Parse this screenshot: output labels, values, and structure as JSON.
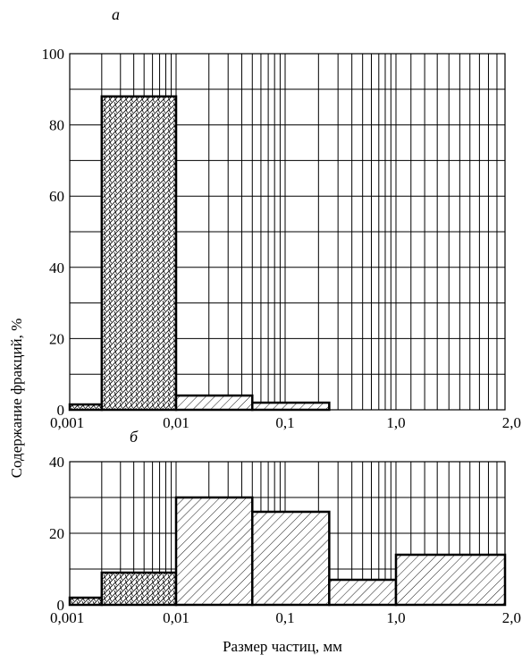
{
  "chart_data": [
    {
      "panel_label": "а",
      "type": "bar",
      "x_scale": "log",
      "x_ticks": [
        "0,001",
        "0,01",
        "0,1",
        "1,0",
        "2,0"
      ],
      "y_ticks": [
        "0",
        "20",
        "40",
        "60",
        "80",
        "100"
      ],
      "ylim": [
        0,
        100
      ],
      "grid": true,
      "bins": [
        {
          "x0": 0.001,
          "x1": 0.002,
          "value": 1.5,
          "hatch": "cross"
        },
        {
          "x0": 0.002,
          "x1": 0.01,
          "value": 88,
          "hatch": "cross"
        },
        {
          "x0": 0.01,
          "x1": 0.05,
          "value": 4,
          "hatch": "diag"
        },
        {
          "x0": 0.05,
          "x1": 0.25,
          "value": 2,
          "hatch": "diag"
        }
      ]
    },
    {
      "panel_label": "б",
      "type": "bar",
      "x_scale": "log",
      "x_ticks": [
        "0,001",
        "0,01",
        "0,1",
        "1,0",
        "2,0"
      ],
      "y_ticks": [
        "0",
        "20",
        "40"
      ],
      "ylim": [
        0,
        40
      ],
      "grid": true,
      "bins": [
        {
          "x0": 0.001,
          "x1": 0.002,
          "value": 2,
          "hatch": "cross"
        },
        {
          "x0": 0.002,
          "x1": 0.01,
          "value": 9,
          "hatch": "cross"
        },
        {
          "x0": 0.01,
          "x1": 0.05,
          "value": 30,
          "hatch": "diag"
        },
        {
          "x0": 0.05,
          "x1": 0.25,
          "value": 26,
          "hatch": "diag"
        },
        {
          "x0": 0.25,
          "x1": 1.0,
          "value": 7,
          "hatch": "diag"
        },
        {
          "x0": 1.0,
          "x1": 2.0,
          "value": 14,
          "hatch": "diag"
        }
      ]
    }
  ],
  "labels": {
    "ylabel": "Содержание фракций, %",
    "xlabel": "Размер частиц, мм"
  }
}
